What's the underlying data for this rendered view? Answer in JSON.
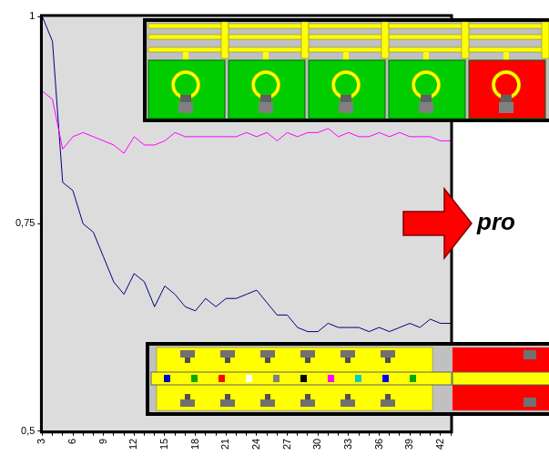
{
  "chart_data": {
    "type": "line",
    "categories": [
      3,
      null,
      null,
      6,
      null,
      null,
      9,
      null,
      null,
      12,
      null,
      null,
      15,
      null,
      null,
      18,
      null,
      null,
      21,
      null,
      null,
      24,
      null,
      null,
      27,
      null,
      null,
      30,
      null,
      null,
      33,
      null,
      null,
      36,
      null,
      null,
      39,
      null,
      null,
      42,
      null
    ],
    "series": [
      {
        "color": "#ff00ff",
        "marker": "none",
        "line_style": "solid",
        "values": [
          0.91,
          0.9,
          0.84,
          0.855,
          0.86,
          0.855,
          0.85,
          0.845,
          0.835,
          0.855,
          0.845,
          0.845,
          0.85,
          0.86,
          0.855,
          0.855,
          0.855,
          0.855,
          0.855,
          0.855,
          0.86,
          0.855,
          0.86,
          0.85,
          0.86,
          0.855,
          0.86,
          0.86,
          0.865,
          0.855,
          0.86,
          0.855,
          0.855,
          0.86,
          0.855,
          0.86,
          0.855,
          0.855,
          0.855,
          0.85,
          0.85
        ]
      },
      {
        "color": "#000080",
        "marker": "none",
        "line_style": "solid",
        "values": [
          1.0,
          0.97,
          0.8,
          0.79,
          0.75,
          0.74,
          0.71,
          0.68,
          0.665,
          0.69,
          0.68,
          0.65,
          0.675,
          0.665,
          0.65,
          0.645,
          0.66,
          0.65,
          0.66,
          0.66,
          0.665,
          0.67,
          0.655,
          0.64,
          0.64,
          0.625,
          0.62,
          0.62,
          0.63,
          0.625,
          0.625,
          0.625,
          0.62,
          0.625,
          0.62,
          0.625,
          0.63,
          0.625,
          0.635,
          0.63,
          0.63
        ]
      }
    ],
    "ylim": [
      0.5,
      1
    ],
    "yticks": [
      {
        "value": 0.5,
        "label": "0,5"
      },
      {
        "value": 0.75,
        "label": "0,75"
      },
      1
    ],
    "grid": false,
    "annotations": [
      "pro"
    ]
  }
}
